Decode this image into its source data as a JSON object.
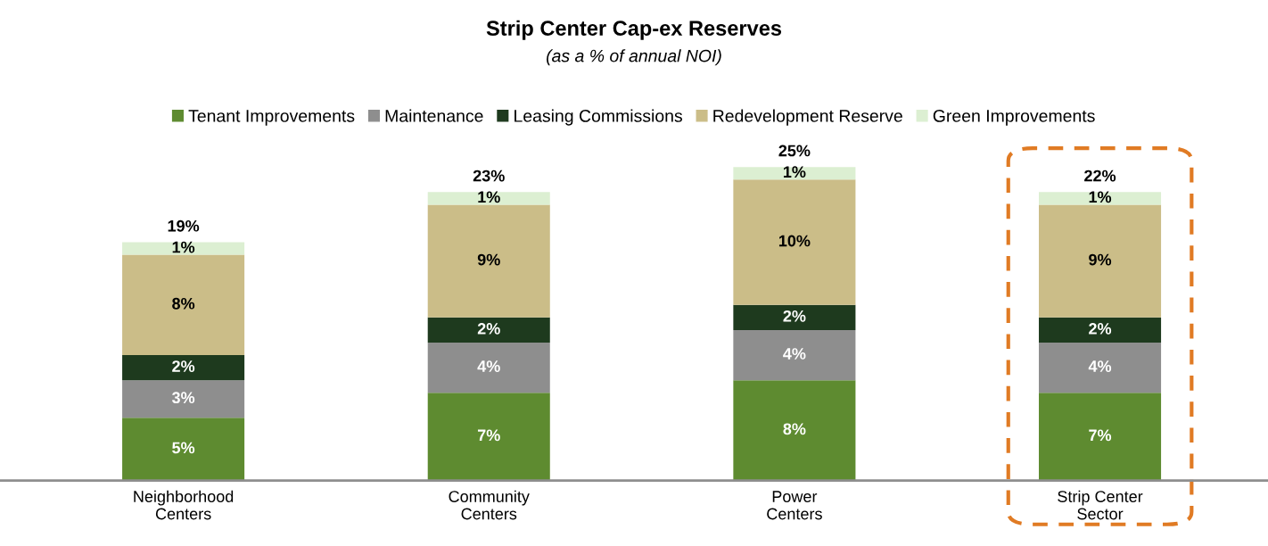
{
  "chart_data": {
    "type": "bar",
    "stacked": true,
    "title": "Strip Center Cap-ex Reserves",
    "subtitle": "(as a % of annual NOI)",
    "categories": [
      "Neighborhood\nCenters",
      "Community\nCenters",
      "Power\nCenters",
      "Strip Center\nSector"
    ],
    "series": [
      {
        "name": "Tenant Improvements",
        "color": "#5e8b30",
        "values": [
          5,
          7,
          8,
          7
        ],
        "value_labels": [
          "5%",
          "7%",
          "8%",
          "7%"
        ]
      },
      {
        "name": "Maintenance",
        "color": "#8e8e8e",
        "values": [
          3,
          4,
          4,
          4
        ],
        "value_labels": [
          "3%",
          "4%",
          "4%",
          "4%"
        ]
      },
      {
        "name": "Leasing Commissions",
        "color": "#1e3a1e",
        "values": [
          2,
          2,
          2,
          2
        ],
        "value_labels": [
          "2%",
          "2%",
          "2%",
          "2%"
        ]
      },
      {
        "name": "Redevelopment Reserve",
        "color": "#cbbd88",
        "values": [
          8,
          9,
          10,
          9
        ],
        "value_labels": [
          "8%",
          "9%",
          "10%",
          "9%"
        ]
      },
      {
        "name": "Green Improvements",
        "color": "#dcefd2",
        "values": [
          1,
          1,
          1,
          1
        ],
        "value_labels": [
          "1%",
          "1%",
          "1%",
          "1%"
        ]
      }
    ],
    "totals": [
      "19%",
      "23%",
      "25%",
      "22%"
    ],
    "legend": "top",
    "tick_labels": "x",
    "grid": false
  }
}
